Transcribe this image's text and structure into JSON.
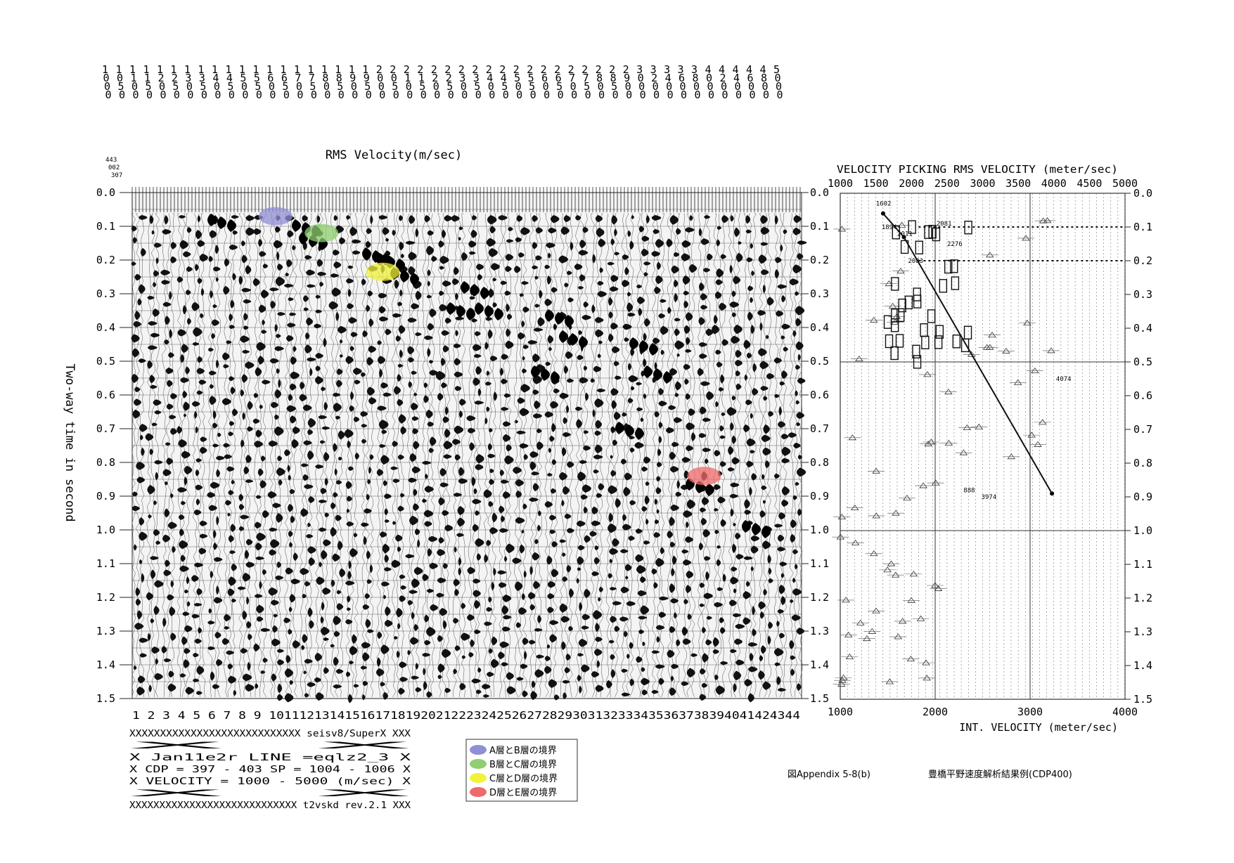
{
  "velocity_columns": [
    "1000",
    "1050",
    "1100",
    "1150",
    "1200",
    "1250",
    "1300",
    "1350",
    "1400",
    "1450",
    "1500",
    "1550",
    "1600",
    "1650",
    "1700",
    "1750",
    "1800",
    "1850",
    "1900",
    "1950",
    "2000",
    "2050",
    "2100",
    "2150",
    "2200",
    "2250",
    "2300",
    "2350",
    "2400",
    "2450",
    "2500",
    "2550",
    "2600",
    "2650",
    "2700",
    "2750",
    "2800",
    "2850",
    "2900",
    "3000",
    "3200",
    "3400",
    "3600",
    "3800",
    "4000",
    "4200",
    "4400",
    "4600",
    "4800",
    "5000"
  ],
  "corner_values": [
    "443",
    "002",
    "307"
  ],
  "left_panel": {
    "title": "RMS Velocity(m/sec)",
    "ylabel": "Two-way time in second",
    "time_ticks": [
      "0.0",
      "0.1",
      "0.2",
      "0.3",
      "0.4",
      "0.5",
      "0.6",
      "0.7",
      "0.8",
      "0.9",
      "1.0",
      "1.1",
      "1.2",
      "1.3",
      "1.4",
      "1.5"
    ],
    "trace_numbers": "1 2 3 4 5 6 7 8 9 1011121314151617181920212223242526272829303132333435363738394041424344"
  },
  "right_panel": {
    "title": "VELOCITY PICKING RMS VELOCITY (meter/sec)",
    "top_ticks": [
      "1000",
      "1500",
      "2000",
      "2500",
      "3000",
      "3500",
      "4000",
      "4500",
      "5000"
    ],
    "bottom_ticks": [
      "1000",
      "2000",
      "3000",
      "4000"
    ],
    "xlabel": "INT. VELOCITY (meter/sec)",
    "annotations": [
      "1602",
      "2081",
      "1894",
      "2276",
      "2011",
      "2083",
      "4074",
      "888",
      "3974"
    ]
  },
  "info_box": {
    "lines": [
      "XXXXXXXXXXXXXXXXXXXXXXXXXXXX seisv8/SuperX XXX",
      "X                                            X",
      "X   Jan11e2r          LINE =eqlz2_3          X",
      "X   CDP = 397 - 403     SP = 1004 - 1006     X",
      "X   VELOCITY = 1000 - 5000 (m/sec)           X",
      "X                                            X",
      "XXXXXXXXXXXXXXXXXXXXXXXXXXXX t2vskd rev.2.1 XXX"
    ]
  },
  "legend": [
    {
      "label": "A層とB層の境界",
      "color": "#8f8fd6"
    },
    {
      "label": "B層とC層の境界",
      "color": "#8fcf6f"
    },
    {
      "label": "C層とD層の境界",
      "color": "#f2f23a"
    },
    {
      "label": "D層とE層の境界",
      "color": "#ef6a6a"
    }
  ],
  "caption": {
    "figure_id": "図Appendix 5-8(b)",
    "title": "豊橋平野速度解析結果例(CDP400)"
  },
  "chart_data": [
    {
      "type": "scatter",
      "title": "RMS Velocity(m/sec)",
      "ylabel": "Two-way time in second",
      "ylim": [
        1.5,
        0.0
      ],
      "x_trace_range": [
        1,
        44
      ],
      "series": [
        {
          "name": "A層とB層の境界",
          "x": [
            10
          ],
          "y": [
            0.07
          ]
        },
        {
          "name": "B層とC層の境界",
          "x": [
            13
          ],
          "y": [
            0.12
          ]
        },
        {
          "name": "C層とD層の境界",
          "x": [
            17
          ],
          "y": [
            0.235
          ]
        },
        {
          "name": "D層とE層の境界",
          "x": [
            38
          ],
          "y": [
            0.84
          ]
        }
      ]
    },
    {
      "type": "line",
      "title": "VELOCITY PICKING RMS VELOCITY (meter/sec)",
      "xlabel": "INT. VELOCITY (meter/sec)",
      "xlim_rms": [
        1000,
        5000
      ],
      "xlim_int": [
        1000,
        4000
      ],
      "ylim": [
        1.5,
        0.0
      ],
      "series": [
        {
          "x": [
            1602,
            1894,
            3974
          ],
          "y": [
            0.06,
            0.13,
            0.89
          ]
        }
      ]
    }
  ]
}
